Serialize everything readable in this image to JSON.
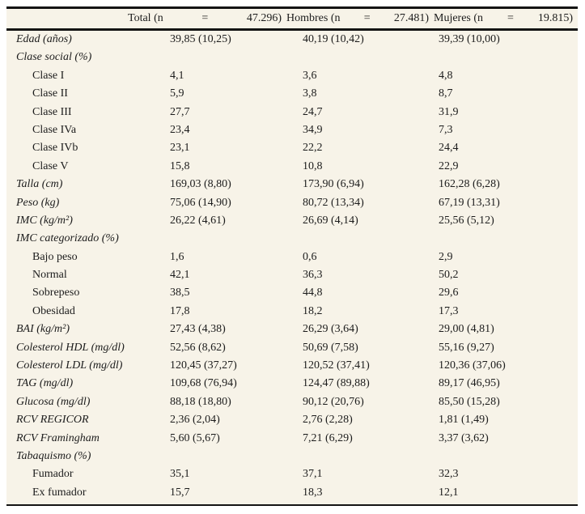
{
  "table": {
    "header": {
      "columns": [
        {
          "label": "Total (n",
          "equals": "=",
          "count": "47.296)"
        },
        {
          "label": "Hombres (n",
          "equals": "=",
          "count": "27.481)"
        },
        {
          "label": "Mujeres (n",
          "equals": "=",
          "count": "19.815)"
        }
      ]
    },
    "rows": [
      {
        "label": "Edad (años)",
        "indent": false,
        "values": [
          "39,85 (10,25)",
          "40,19 (10,42)",
          "39,39 (10,00)"
        ]
      },
      {
        "label": "Clase social (%)",
        "indent": false,
        "values": [
          "",
          "",
          ""
        ]
      },
      {
        "label": "Clase I",
        "indent": true,
        "values": [
          "4,1",
          "3,6",
          "4,8"
        ]
      },
      {
        "label": "Clase II",
        "indent": true,
        "values": [
          "5,9",
          "3,8",
          "8,7"
        ]
      },
      {
        "label": "Clase III",
        "indent": true,
        "values": [
          "27,7",
          "24,7",
          "31,9"
        ]
      },
      {
        "label": "Clase IVa",
        "indent": true,
        "values": [
          "23,4",
          "34,9",
          "7,3"
        ]
      },
      {
        "label": "Clase IVb",
        "indent": true,
        "values": [
          "23,1",
          "22,2",
          "24,4"
        ]
      },
      {
        "label": "Clase V",
        "indent": true,
        "values": [
          "15,8",
          "10,8",
          "22,9"
        ]
      },
      {
        "label": "Talla (cm)",
        "indent": false,
        "values": [
          "169,03 (8,80)",
          "173,90 (6,94)",
          "162,28 (6,28)"
        ]
      },
      {
        "label": "Peso (kg)",
        "indent": false,
        "values": [
          "75,06 (14,90)",
          "80,72 (13,34)",
          "67,19 (13,31)"
        ]
      },
      {
        "label": "IMC (kg/m²)",
        "indent": false,
        "values": [
          "26,22 (4,61)",
          "26,69 (4,14)",
          "25,56 (5,12)"
        ]
      },
      {
        "label": "IMC categorizado (%)",
        "indent": false,
        "values": [
          "",
          "",
          ""
        ]
      },
      {
        "label": "Bajo peso",
        "indent": true,
        "values": [
          "1,6",
          "0,6",
          "2,9"
        ]
      },
      {
        "label": "Normal",
        "indent": true,
        "values": [
          "42,1",
          "36,3",
          "50,2"
        ]
      },
      {
        "label": "Sobrepeso",
        "indent": true,
        "values": [
          "38,5",
          "44,8",
          "29,6"
        ]
      },
      {
        "label": "Obesidad",
        "indent": true,
        "values": [
          "17,8",
          "18,2",
          "17,3"
        ]
      },
      {
        "label": "BAI (kg/m²)",
        "indent": false,
        "values": [
          "27,43 (4,38)",
          "26,29 (3,64)",
          "29,00 (4,81)"
        ]
      },
      {
        "label": "Colesterol HDL (mg/dl)",
        "indent": false,
        "values": [
          "52,56 (8,62)",
          "50,69 (7,58)",
          "55,16 (9,27)"
        ]
      },
      {
        "label": "Colesterol LDL (mg/dl)",
        "indent": false,
        "values": [
          "120,45 (37,27)",
          "120,52 (37,41)",
          "120,36 (37,06)"
        ]
      },
      {
        "label": "TAG (mg/dl)",
        "indent": false,
        "values": [
          "109,68 (76,94)",
          "124,47 (89,88)",
          "89,17 (46,95)"
        ]
      },
      {
        "label": "Glucosa (mg/dl)",
        "indent": false,
        "values": [
          "88,18 (18,80)",
          "90,12 (20,76)",
          "85,50 (15,28)"
        ]
      },
      {
        "label": "RCV REGICOR",
        "indent": false,
        "values": [
          "2,36 (2,04)",
          "2,76 (2,28)",
          "1,81 (1,49)"
        ]
      },
      {
        "label": "RCV Framingham",
        "indent": false,
        "values": [
          "5,60 (5,67)",
          "7,21 (6,29)",
          "3,37 (3,62)"
        ]
      },
      {
        "label": "Tabaquismo (%)",
        "indent": false,
        "values": [
          "",
          "",
          ""
        ]
      },
      {
        "label": "Fumador",
        "indent": true,
        "values": [
          "35,1",
          "37,1",
          "32,3"
        ]
      },
      {
        "label": "Ex fumador",
        "indent": true,
        "values": [
          "15,7",
          "18,3",
          "12,1"
        ]
      }
    ]
  },
  "colors": {
    "table_background": "#f7f3e8",
    "rule": "#141414",
    "text": "#1c1c1c"
  }
}
